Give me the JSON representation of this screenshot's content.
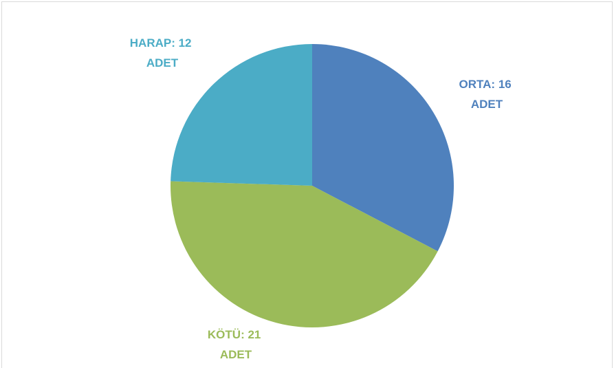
{
  "chart_data": {
    "type": "pie",
    "values": [
      16,
      21,
      12
    ],
    "value_labels": [
      "ORTA: 16 ADET",
      "KÖTÜ: 21 ADET",
      "HARAP: 12 ADET"
    ],
    "colors": [
      "#4f81bd",
      "#9bbb59",
      "#4bacc6"
    ]
  }
}
